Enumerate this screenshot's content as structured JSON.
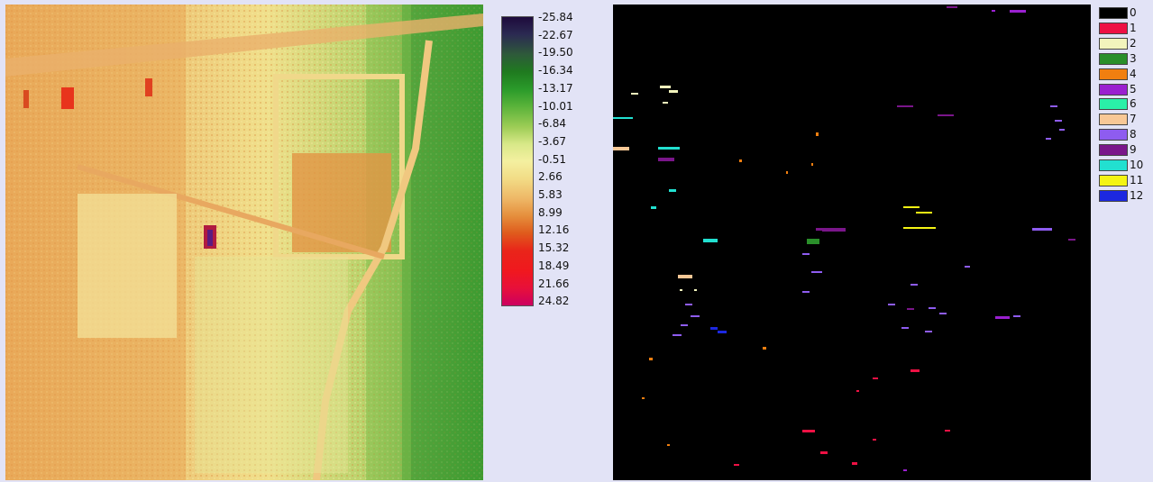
{
  "colorbar": {
    "labels": [
      "-25.84",
      "-22.67",
      "-19.50",
      "-16.34",
      "-13.17",
      "-10.01",
      "-6.84",
      "-3.67",
      "-0.51",
      "2.66",
      "5.83",
      "8.99",
      "12.16",
      "15.32",
      "18.49",
      "21.66",
      "24.82"
    ],
    "colors": [
      "#1e0a3c",
      "#2b2a52",
      "#2e5a3a",
      "#1f7a1f",
      "#2a9a2a",
      "#5ab33a",
      "#9ccc55",
      "#d8e888",
      "#f4f0a0",
      "#f2dc86",
      "#eeb766",
      "#e58e3c",
      "#df5a1c",
      "#e9251a",
      "#f0181e",
      "#e8103a",
      "#cc0060"
    ]
  },
  "legend": [
    {
      "label": "0",
      "color": "#000000"
    },
    {
      "label": "1",
      "color": "#ee1144"
    },
    {
      "label": "2",
      "color": "#f2f4bc"
    },
    {
      "label": "3",
      "color": "#2a8f2a"
    },
    {
      "label": "4",
      "color": "#f07f10"
    },
    {
      "label": "5",
      "color": "#9a20d0"
    },
    {
      "label": "6",
      "color": "#2af0a8"
    },
    {
      "label": "7",
      "color": "#f8c896"
    },
    {
      "label": "8",
      "color": "#8e5cf0"
    },
    {
      "label": "9",
      "color": "#7a168a"
    },
    {
      "label": "10",
      "color": "#22e0d0"
    },
    {
      "label": "11",
      "color": "#f4f414"
    },
    {
      "label": "12",
      "color": "#1c28e0"
    }
  ]
}
